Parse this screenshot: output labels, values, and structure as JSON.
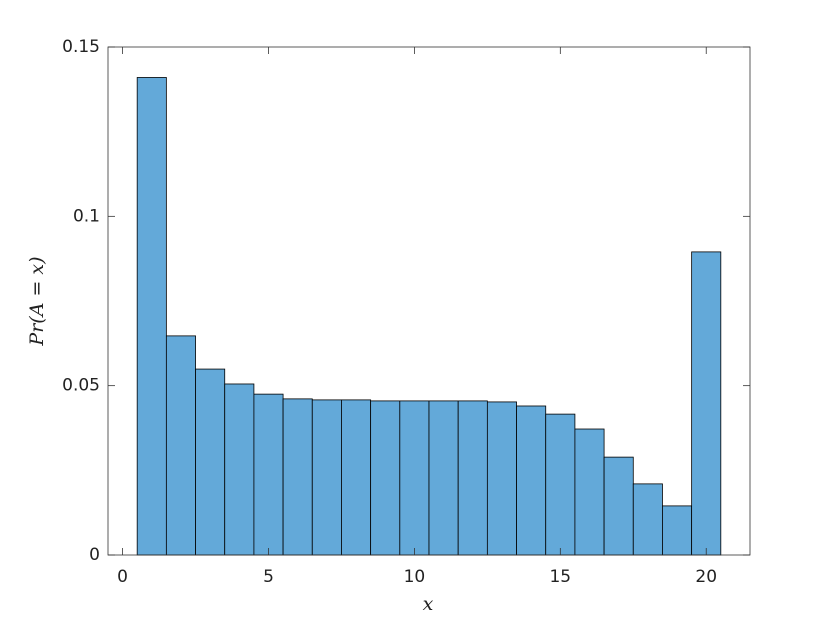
{
  "chart_data": {
    "type": "histogram",
    "xlabel": "x",
    "ylabel": "Pr(A = x)",
    "bins": [
      0.5,
      1.5,
      2.5,
      3.5,
      4.5,
      5.5,
      6.5,
      7.5,
      8.5,
      9.5,
      10.5,
      11.5,
      12.5,
      13.5,
      14.5,
      15.5,
      16.5,
      17.5,
      18.5,
      19.5,
      20.5
    ],
    "values": [
      0.141,
      0.0647,
      0.0549,
      0.0505,
      0.0475,
      0.0461,
      0.0458,
      0.0458,
      0.0455,
      0.0455,
      0.0455,
      0.0455,
      0.0452,
      0.044,
      0.0416,
      0.0372,
      0.0289,
      0.021,
      0.0145,
      0.0895
    ],
    "color": "#63a9d9",
    "xlim": [
      -0.5,
      21.5
    ],
    "ylim": [
      0,
      0.15
    ],
    "xticks": [
      0,
      5,
      10,
      15,
      20
    ],
    "yticks": [
      0,
      0.05,
      0.1,
      0.15
    ]
  }
}
